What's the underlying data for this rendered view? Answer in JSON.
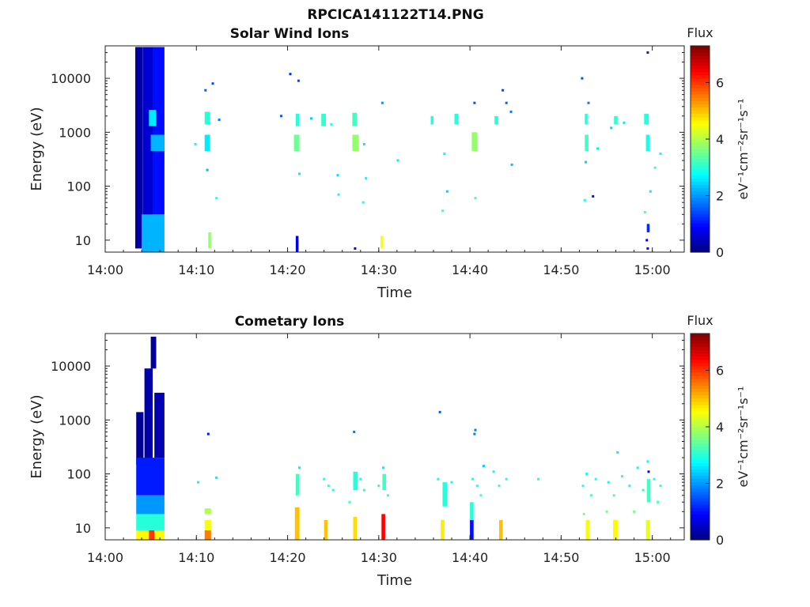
{
  "figure_title": "RPCICA141122T14.PNG",
  "chart_data": [
    {
      "type": "heatmap",
      "title": "Solar Wind Ions",
      "xlabel": "Time",
      "ylabel": "Energy (eV)",
      "x_scale": "time",
      "y_scale": "log",
      "x_ticks": [
        "14:00",
        "14:10",
        "14:20",
        "14:30",
        "14:40",
        "14:50",
        "15:00"
      ],
      "x_tick_minutes": [
        0,
        10,
        20,
        30,
        40,
        50,
        60
      ],
      "xlim_minutes": [
        0,
        63.5
      ],
      "y_ticks": [
        10,
        100,
        1000,
        10000
      ],
      "y_tick_labels": [
        "10",
        "100",
        "1000",
        "10000"
      ],
      "ylim": [
        6,
        40000
      ],
      "colorbar": {
        "title": "Flux",
        "label": "eV⁻¹cm⁻²sr⁻¹s⁻¹",
        "min": 0,
        "max": 7.3,
        "ticks": [
          0,
          2,
          4,
          6
        ],
        "tick_labels": [
          "0",
          "2",
          "4",
          "6"
        ],
        "colormap": "jet"
      },
      "grid": false,
      "blocks": [
        {
          "t": [
            3.3,
            4.1
          ],
          "e": [
            7,
            38000
          ],
          "v": 0.25
        },
        {
          "t": [
            4.1,
            5.2
          ],
          "e": [
            7,
            38000
          ],
          "v": 0.6
        },
        {
          "t": [
            5.2,
            6.5
          ],
          "e": [
            30,
            38000
          ],
          "v": 1.0
        },
        {
          "t": [
            4.0,
            6.5
          ],
          "e": [
            6,
            30
          ],
          "v": 2.2
        },
        {
          "t": [
            4.8,
            5.6
          ],
          "e": [
            1300,
            2600
          ],
          "v": 2.6
        },
        {
          "t": [
            5.0,
            6.5
          ],
          "e": [
            450,
            900
          ],
          "v": 2.2
        },
        {
          "t": [
            10.9,
            11.5
          ],
          "e": [
            1400,
            2400
          ],
          "v": 3.0
        },
        {
          "t": [
            10.9,
            11.5
          ],
          "e": [
            450,
            900
          ],
          "v": 2.6
        },
        {
          "t": [
            11.3,
            11.6
          ],
          "e": [
            7,
            14
          ],
          "v": 3.8
        },
        {
          "t": [
            20.9,
            21.3
          ],
          "e": [
            1300,
            2200
          ],
          "v": 3.0
        },
        {
          "t": [
            20.7,
            21.3
          ],
          "e": [
            450,
            900
          ],
          "v": 3.5
        },
        {
          "t": [
            20.9,
            21.2
          ],
          "e": [
            6,
            12
          ],
          "v": 0.8
        },
        {
          "t": [
            23.7,
            24.2
          ],
          "e": [
            1300,
            2200
          ],
          "v": 3.1
        },
        {
          "t": [
            27.1,
            27.6
          ],
          "e": [
            1300,
            2300
          ],
          "v": 3.2
        },
        {
          "t": [
            27.1,
            27.8
          ],
          "e": [
            450,
            900
          ],
          "v": 3.8
        },
        {
          "t": [
            30.2,
            30.5
          ],
          "e": [
            7,
            12
          ],
          "v": 4.5
        },
        {
          "t": [
            35.7,
            36.0
          ],
          "e": [
            1400,
            2000
          ],
          "v": 3.0
        },
        {
          "t": [
            38.3,
            38.7
          ],
          "e": [
            1400,
            2200
          ],
          "v": 3.0
        },
        {
          "t": [
            40.2,
            40.8
          ],
          "e": [
            450,
            1000
          ],
          "v": 3.8
        },
        {
          "t": [
            42.7,
            43.1
          ],
          "e": [
            1400,
            2000
          ],
          "v": 3.0
        },
        {
          "t": [
            52.6,
            52.9
          ],
          "e": [
            1400,
            2200
          ],
          "v": 3.0
        },
        {
          "t": [
            52.6,
            53.0
          ],
          "e": [
            450,
            900
          ],
          "v": 3.2
        },
        {
          "t": [
            55.8,
            56.2
          ],
          "e": [
            1400,
            2000
          ],
          "v": 3.1
        },
        {
          "t": [
            59.1,
            59.6
          ],
          "e": [
            1400,
            2200
          ],
          "v": 3.0
        },
        {
          "t": [
            59.3,
            59.7
          ],
          "e": [
            450,
            900
          ],
          "v": 2.9
        },
        {
          "t": [
            59.4,
            59.7
          ],
          "e": [
            14,
            20
          ],
          "v": 1.2
        }
      ],
      "points": [
        [
          11.0,
          6000,
          1.6
        ],
        [
          11.8,
          8000,
          1.4
        ],
        [
          12.5,
          1700,
          1.8
        ],
        [
          9.9,
          600,
          2.8
        ],
        [
          11.2,
          200,
          2.2
        ],
        [
          12.2,
          60,
          3.0
        ],
        [
          20.3,
          12000,
          1.2
        ],
        [
          21.2,
          9000,
          1.4
        ],
        [
          19.3,
          2000,
          1.6
        ],
        [
          21.3,
          170,
          2.6
        ],
        [
          22.6,
          1800,
          2.4
        ],
        [
          25.5,
          160,
          2.5
        ],
        [
          25.6,
          70,
          2.8
        ],
        [
          24.8,
          1400,
          3.0
        ],
        [
          28.4,
          600,
          2.6
        ],
        [
          28.6,
          140,
          2.8
        ],
        [
          28.3,
          50,
          3.0
        ],
        [
          30.4,
          3500,
          2.0
        ],
        [
          32.1,
          300,
          2.6
        ],
        [
          37.2,
          400,
          2.8
        ],
        [
          37.0,
          35,
          3.3
        ],
        [
          37.5,
          80,
          2.4
        ],
        [
          40.5,
          3500,
          1.5
        ],
        [
          40.6,
          60,
          3.2
        ],
        [
          43.6,
          6000,
          1.4
        ],
        [
          44.0,
          3500,
          1.6
        ],
        [
          44.5,
          2400,
          1.8
        ],
        [
          44.6,
          250,
          2.3
        ],
        [
          52.3,
          10000,
          1.5
        ],
        [
          53.0,
          3500,
          1.8
        ],
        [
          52.7,
          280,
          2.4
        ],
        [
          53.5,
          65,
          1.0
        ],
        [
          52.6,
          55,
          3.0
        ],
        [
          54.0,
          500,
          2.6
        ],
        [
          55.5,
          1200,
          2.4
        ],
        [
          56.9,
          1500,
          2.6
        ],
        [
          59.5,
          30000,
          1.1
        ],
        [
          59.8,
          80,
          2.6
        ],
        [
          60.3,
          220,
          3.0
        ],
        [
          60.9,
          400,
          2.8
        ],
        [
          59.2,
          33,
          3.4
        ],
        [
          59.4,
          10,
          0.9
        ],
        [
          59.5,
          7,
          0.9
        ],
        [
          27.4,
          7,
          0.8
        ]
      ]
    },
    {
      "type": "heatmap",
      "title": "Cometary Ions",
      "xlabel": "Time",
      "ylabel": "Energy (eV)",
      "x_scale": "time",
      "y_scale": "log",
      "x_ticks": [
        "14:00",
        "14:10",
        "14:20",
        "14:30",
        "14:40",
        "14:50",
        "15:00"
      ],
      "x_tick_minutes": [
        0,
        10,
        20,
        30,
        40,
        50,
        60
      ],
      "xlim_minutes": [
        0,
        63.5
      ],
      "y_ticks": [
        10,
        100,
        1000,
        10000
      ],
      "y_tick_labels": [
        "10",
        "100",
        "1000",
        "10000"
      ],
      "ylim": [
        6,
        40000
      ],
      "colorbar": {
        "title": "Flux",
        "label": "eV⁻¹cm⁻²sr⁻¹s⁻¹",
        "min": 0,
        "max": 7.3,
        "ticks": [
          0,
          2,
          4,
          6
        ],
        "tick_labels": [
          "0",
          "2",
          "4",
          "6"
        ],
        "colormap": "jet"
      },
      "grid": false,
      "blocks": [
        {
          "t": [
            3.4,
            4.2
          ],
          "e": [
            150,
            1400
          ],
          "v": 0.15
        },
        {
          "t": [
            4.3,
            5.2
          ],
          "e": [
            150,
            9000
          ],
          "v": 0.3
        },
        {
          "t": [
            5.0,
            5.6
          ],
          "e": [
            9000,
            35000
          ],
          "v": 0.2
        },
        {
          "t": [
            5.4,
            6.5
          ],
          "e": [
            200,
            3200
          ],
          "v": 0.35
        },
        {
          "t": [
            3.4,
            6.5
          ],
          "e": [
            40,
            200
          ],
          "v": 1.1
        },
        {
          "t": [
            3.4,
            6.5
          ],
          "e": [
            18,
            40
          ],
          "v": 2.0
        },
        {
          "t": [
            3.4,
            6.5
          ],
          "e": [
            9,
            18
          ],
          "v": 3.0
        },
        {
          "t": [
            3.4,
            6.5
          ],
          "e": [
            6,
            9
          ],
          "v": 4.6
        },
        {
          "t": [
            4.8,
            5.4
          ],
          "e": [
            6,
            9
          ],
          "v": 6.0
        },
        {
          "t": [
            10.9,
            11.6
          ],
          "e": [
            18,
            23
          ],
          "v": 4.0
        },
        {
          "t": [
            10.9,
            11.6
          ],
          "e": [
            9,
            14
          ],
          "v": 4.5
        },
        {
          "t": [
            10.9,
            11.6
          ],
          "e": [
            6,
            9
          ],
          "v": 5.5
        },
        {
          "t": [
            20.8,
            21.3
          ],
          "e": [
            6,
            24
          ],
          "v": 5.0
        },
        {
          "t": [
            20.9,
            21.3
          ],
          "e": [
            40,
            100
          ],
          "v": 3.2
        },
        {
          "t": [
            24.0,
            24.4
          ],
          "e": [
            6,
            14
          ],
          "v": 5.0
        },
        {
          "t": [
            27.2,
            27.6
          ],
          "e": [
            6,
            16
          ],
          "v": 4.8
        },
        {
          "t": [
            27.2,
            27.7
          ],
          "e": [
            50,
            110
          ],
          "v": 3.0
        },
        {
          "t": [
            30.3,
            30.7
          ],
          "e": [
            6,
            18
          ],
          "v": 6.4
        },
        {
          "t": [
            30.4,
            30.8
          ],
          "e": [
            50,
            100
          ],
          "v": 3.2
        },
        {
          "t": [
            36.8,
            37.2
          ],
          "e": [
            6,
            14
          ],
          "v": 4.7
        },
        {
          "t": [
            37.0,
            37.5
          ],
          "e": [
            25,
            70
          ],
          "v": 3.0
        },
        {
          "t": [
            40.0,
            40.4
          ],
          "e": [
            6,
            14
          ],
          "v": 1.0
        },
        {
          "t": [
            40.0,
            40.4
          ],
          "e": [
            14,
            30
          ],
          "v": 3.0
        },
        {
          "t": [
            43.2,
            43.6
          ],
          "e": [
            6,
            14
          ],
          "v": 5.0
        },
        {
          "t": [
            52.7,
            53.1
          ],
          "e": [
            6,
            14
          ],
          "v": 4.5
        },
        {
          "t": [
            55.7,
            56.2
          ],
          "e": [
            6,
            14
          ],
          "v": 4.6
        },
        {
          "t": [
            59.3,
            59.7
          ],
          "e": [
            6,
            14
          ],
          "v": 4.4
        },
        {
          "t": [
            59.4,
            59.8
          ],
          "e": [
            30,
            80
          ],
          "v": 3.2
        }
      ],
      "points": [
        [
          11.3,
          550,
          1.0
        ],
        [
          10.2,
          70,
          2.7
        ],
        [
          12.2,
          85,
          2.6
        ],
        [
          27.3,
          600,
          1.8
        ],
        [
          36.7,
          1400,
          1.6
        ],
        [
          40.6,
          650,
          1.8
        ],
        [
          40.5,
          550,
          1.8
        ],
        [
          41.5,
          140,
          2.4
        ],
        [
          21.3,
          130,
          2.6
        ],
        [
          24.0,
          80,
          3.0
        ],
        [
          24.5,
          60,
          3.0
        ],
        [
          25.0,
          50,
          3.0
        ],
        [
          26.8,
          30,
          3.2
        ],
        [
          28.0,
          80,
          2.9
        ],
        [
          28.4,
          50,
          3.0
        ],
        [
          30.0,
          60,
          3.0
        ],
        [
          30.5,
          130,
          2.6
        ],
        [
          31.0,
          40,
          3.1
        ],
        [
          36.5,
          80,
          3.0
        ],
        [
          37.4,
          60,
          3.0
        ],
        [
          38.0,
          70,
          2.8
        ],
        [
          40.3,
          80,
          3.0
        ],
        [
          40.8,
          60,
          3.0
        ],
        [
          41.2,
          40,
          3.2
        ],
        [
          42.6,
          110,
          2.8
        ],
        [
          43.2,
          60,
          3.1
        ],
        [
          44.0,
          80,
          3.0
        ],
        [
          52.4,
          60,
          3.0
        ],
        [
          52.8,
          100,
          2.8
        ],
        [
          53.3,
          40,
          3.2
        ],
        [
          53.8,
          80,
          3.0
        ],
        [
          55.2,
          70,
          2.8
        ],
        [
          55.8,
          40,
          3.3
        ],
        [
          56.2,
          250,
          2.6
        ],
        [
          56.7,
          90,
          3.0
        ],
        [
          57.5,
          60,
          3.0
        ],
        [
          58.4,
          130,
          2.8
        ],
        [
          59.0,
          50,
          3.1
        ],
        [
          59.5,
          170,
          2.8
        ],
        [
          59.6,
          110,
          0.9
        ],
        [
          60.2,
          80,
          3.0
        ],
        [
          60.9,
          60,
          3.1
        ],
        [
          60.6,
          30,
          3.2
        ],
        [
          58.0,
          20,
          3.6
        ],
        [
          55.0,
          20,
          3.6
        ],
        [
          52.5,
          18,
          3.6
        ],
        [
          47.5,
          80,
          3.0
        ]
      ]
    }
  ]
}
